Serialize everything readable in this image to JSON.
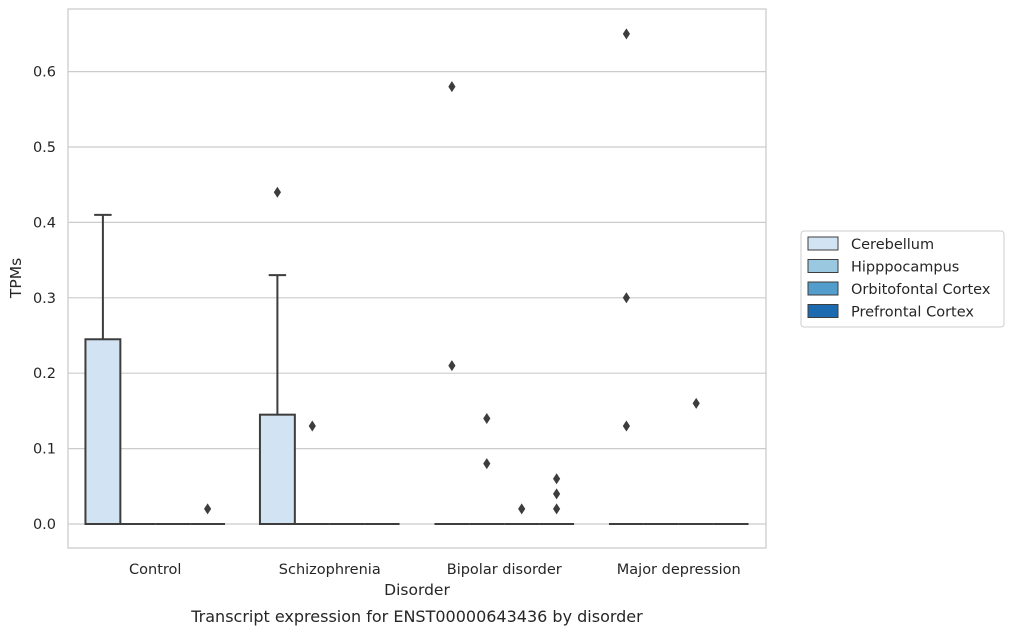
{
  "caption": "Transcript expression for ENST00000643436 by disorder",
  "chart_data": {
    "type": "box",
    "xlabel": "Disorder",
    "ylabel": "TPMs",
    "ylim": [
      -0.032,
      0.685
    ],
    "yticks": [
      0.0,
      0.1,
      0.2,
      0.3,
      0.4,
      0.5,
      0.6
    ],
    "ytick_labels": [
      "0.0",
      "0.1",
      "0.2",
      "0.3",
      "0.4",
      "0.5",
      "0.6"
    ],
    "grid": "horizontal",
    "legend_position": "right",
    "categories": [
      "Control",
      "Schizophrenia",
      "Bipolar disorder",
      "Major depression"
    ],
    "series": [
      {
        "name": "Cerebellum",
        "color": "#d2e3f3",
        "boxes": [
          {
            "q1": 0.0,
            "median": 0.0,
            "q3": 0.245,
            "whislo": 0.0,
            "whishi": 0.41,
            "fliers": []
          },
          {
            "q1": 0.0,
            "median": 0.0,
            "q3": 0.145,
            "whislo": 0.0,
            "whishi": 0.33,
            "fliers": [
              0.44
            ]
          },
          {
            "q1": 0.0,
            "median": 0.0,
            "q3": 0.0,
            "whislo": 0.0,
            "whishi": 0.0,
            "fliers": [
              0.58,
              0.21
            ]
          },
          {
            "q1": 0.0,
            "median": 0.0,
            "q3": 0.0,
            "whislo": 0.0,
            "whishi": 0.0,
            "fliers": [
              0.65,
              0.3,
              0.13
            ]
          }
        ]
      },
      {
        "name": "Hipppocampus",
        "color": "#9ac8e0",
        "boxes": [
          {
            "q1": 0.0,
            "median": 0.0,
            "q3": 0.0,
            "whislo": 0.0,
            "whishi": 0.0,
            "fliers": []
          },
          {
            "q1": 0.0,
            "median": 0.0,
            "q3": 0.0,
            "whislo": 0.0,
            "whishi": 0.0,
            "fliers": [
              0.13
            ]
          },
          {
            "q1": 0.0,
            "median": 0.0,
            "q3": 0.0,
            "whislo": 0.0,
            "whishi": 0.0,
            "fliers": [
              0.14,
              0.08
            ]
          },
          {
            "q1": 0.0,
            "median": 0.0,
            "q3": 0.0,
            "whislo": 0.0,
            "whishi": 0.0,
            "fliers": []
          }
        ]
      },
      {
        "name": "Orbitofontal Cortex",
        "color": "#529dcc",
        "boxes": [
          {
            "q1": 0.0,
            "median": 0.0,
            "q3": 0.0,
            "whislo": 0.0,
            "whishi": 0.0,
            "fliers": []
          },
          {
            "q1": 0.0,
            "median": 0.0,
            "q3": 0.0,
            "whislo": 0.0,
            "whishi": 0.0,
            "fliers": []
          },
          {
            "q1": 0.0,
            "median": 0.0,
            "q3": 0.0,
            "whislo": 0.0,
            "whishi": 0.0,
            "fliers": [
              0.02
            ]
          },
          {
            "q1": 0.0,
            "median": 0.0,
            "q3": 0.0,
            "whislo": 0.0,
            "whishi": 0.0,
            "fliers": [
              0.16
            ]
          }
        ]
      },
      {
        "name": "Prefrontal Cortex",
        "color": "#1c6aaf",
        "boxes": [
          {
            "q1": 0.0,
            "median": 0.0,
            "q3": 0.0,
            "whislo": 0.0,
            "whishi": 0.0,
            "fliers": [
              0.02
            ]
          },
          {
            "q1": 0.0,
            "median": 0.0,
            "q3": 0.0,
            "whislo": 0.0,
            "whishi": 0.0,
            "fliers": []
          },
          {
            "q1": 0.0,
            "median": 0.0,
            "q3": 0.0,
            "whislo": 0.0,
            "whishi": 0.0,
            "fliers": [
              0.06,
              0.04,
              0.02
            ]
          },
          {
            "q1": 0.0,
            "median": 0.0,
            "q3": 0.0,
            "whislo": 0.0,
            "whishi": 0.0,
            "fliers": []
          }
        ]
      }
    ]
  }
}
